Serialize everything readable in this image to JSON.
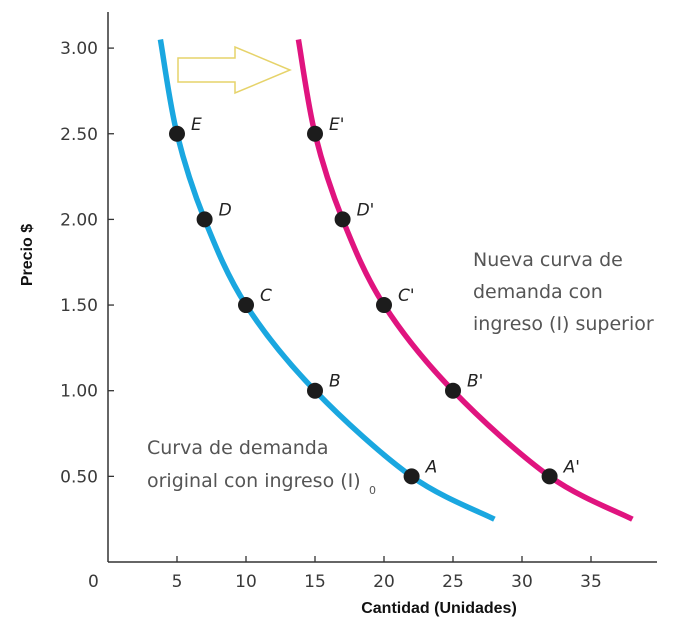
{
  "chart_data": {
    "type": "line",
    "xlabel": "Cantidad (Unidades)",
    "ylabel": "Precio $",
    "origin_label": "0",
    "xlim": [
      0,
      40
    ],
    "ylim": [
      0,
      3.2
    ],
    "x_ticks": [
      5,
      10,
      15,
      20,
      25,
      30,
      35
    ],
    "x_tick_labels": [
      "5",
      "10",
      "15",
      "20",
      "25",
      "30",
      "35"
    ],
    "y_ticks": [
      0.5,
      1.0,
      1.5,
      2.0,
      2.5,
      3.0
    ],
    "y_tick_labels": [
      "0.50",
      "1.00",
      "1.50",
      "2.00",
      "2.50",
      "3.00"
    ],
    "grid": false,
    "series": [
      {
        "color": "#1aa7e0",
        "points": [
          {
            "label": "E",
            "x": 5,
            "y": 2.5
          },
          {
            "label": "D",
            "x": 7,
            "y": 2.0
          },
          {
            "label": "C",
            "x": 10,
            "y": 1.5
          },
          {
            "label": "B",
            "x": 15,
            "y": 1.0
          },
          {
            "label": "A",
            "x": 22,
            "y": 0.5
          }
        ],
        "curve": [
          {
            "x": 3.8,
            "y": 3.05
          },
          {
            "x": 5,
            "y": 2.5
          },
          {
            "x": 7,
            "y": 2.0
          },
          {
            "x": 10,
            "y": 1.5
          },
          {
            "x": 15,
            "y": 1.0
          },
          {
            "x": 22,
            "y": 0.5
          },
          {
            "x": 28,
            "y": 0.25
          }
        ]
      },
      {
        "color": "#e0147f",
        "points": [
          {
            "label": "E'",
            "x": 15,
            "y": 2.5
          },
          {
            "label": "D'",
            "x": 17,
            "y": 2.0
          },
          {
            "label": "C'",
            "x": 20,
            "y": 1.5
          },
          {
            "label": "B'",
            "x": 25,
            "y": 1.0
          },
          {
            "label": "A'",
            "x": 32,
            "y": 0.5
          }
        ],
        "curve": [
          {
            "x": 13.8,
            "y": 3.05
          },
          {
            "x": 15,
            "y": 2.5
          },
          {
            "x": 17,
            "y": 2.0
          },
          {
            "x": 20,
            "y": 1.5
          },
          {
            "x": 25,
            "y": 1.0
          },
          {
            "x": 32,
            "y": 0.5
          },
          {
            "x": 38,
            "y": 0.25
          }
        ]
      }
    ],
    "annotations": {
      "original_line1": "Curva de demanda",
      "original_line2": "original con ingreso (I)",
      "original_subscript": "0",
      "new_line1": "Nueva curva de",
      "new_line2": "demanda con",
      "new_line3": "ingreso (I) superior"
    },
    "arrow_color": "#e6d36a"
  }
}
